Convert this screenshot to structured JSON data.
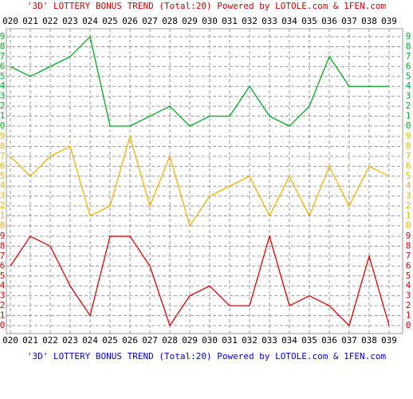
{
  "chart_data": {
    "type": "line",
    "title": "'3D' LOTTERY BONUS TREND (Total:20)  Powered by LOTOLE.com & 1FEN.com",
    "categories": [
      "020",
      "021",
      "022",
      "023",
      "024",
      "025",
      "026",
      "027",
      "028",
      "029",
      "030",
      "031",
      "032",
      "033",
      "034",
      "035",
      "036",
      "037",
      "038",
      "039"
    ],
    "series": [
      {
        "color": "#00aa22",
        "values": [
          6,
          5,
          6,
          7,
          9,
          0,
          0,
          1,
          2,
          0,
          1,
          1,
          4,
          1,
          0,
          2,
          7,
          4,
          4,
          4
        ]
      },
      {
        "color": "#f0b400",
        "values": [
          7,
          5,
          7,
          8,
          1,
          2,
          9,
          2,
          7,
          0,
          3,
          4,
          5,
          1,
          5,
          1,
          6,
          2,
          6,
          5
        ]
      },
      {
        "color": "#dd0000",
        "values": [
          6,
          9,
          8,
          4,
          1,
          9,
          9,
          6,
          0,
          3,
          4,
          2,
          2,
          9,
          2,
          3,
          2,
          0,
          7,
          0
        ]
      }
    ],
    "ylim": [
      0,
      9
    ],
    "yticks": [
      0,
      1,
      2,
      3,
      4,
      5,
      6,
      7,
      8,
      9
    ],
    "grid": true
  }
}
